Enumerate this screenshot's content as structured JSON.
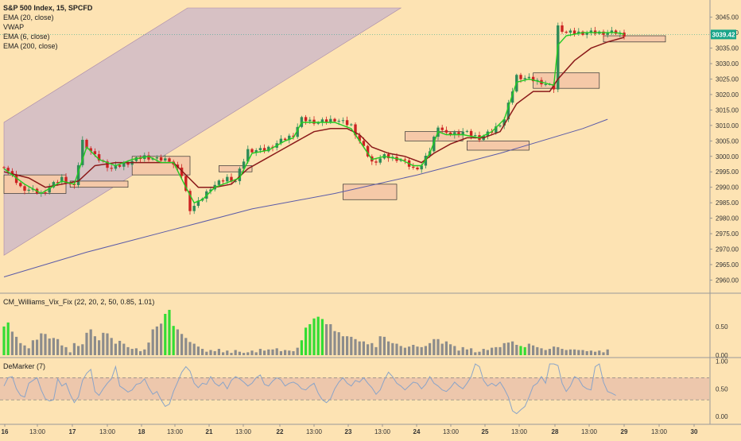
{
  "window": {
    "symbol_line": "S&P 500 Index, 15, SPCFD",
    "indicators": [
      "EMA (20, close)",
      "VWAP",
      "EMA (6, close)",
      "EMA (200, close)"
    ]
  },
  "price_badge": "3039.42",
  "colors": {
    "background": "#fde3b3",
    "channel_fill": "#c9b6c9",
    "zone_fill": "#f5c9a8",
    "ema_fast": "#22cc22",
    "ema_mid": "#8b1a1a",
    "ema_slow": "#5b5ba8",
    "bull": "#2e8b57",
    "bear": "#cc2222",
    "vix_gray": "#8c8c8c",
    "vix_green": "#33dd33",
    "demarker": "#8aa4c8",
    "badge": "#1aa58a"
  },
  "chart_data": [
    {
      "type": "candlestick",
      "pane": "price",
      "title": "S&P 500 Index, 15, SPCFD",
      "x_ticks": [
        "16",
        "13:00",
        "17",
        "13:00",
        "18",
        "13:00",
        "21",
        "13:00",
        "22",
        "13:00",
        "23",
        "13:00",
        "24",
        "13:00",
        "25",
        "13:00",
        "28",
        "13:00",
        "29",
        "13:00",
        "30"
      ],
      "y_ticks": [
        2960,
        2965,
        2970,
        2975,
        2980,
        2985,
        2990,
        2995,
        3000,
        3005,
        3010,
        3015,
        3020,
        3025,
        3030,
        3035,
        3040,
        3045
      ],
      "ylim": [
        2956,
        3048
      ],
      "last_price": 3039.42,
      "close_path": [
        [
          0,
          2997
        ],
        [
          4,
          2990
        ],
        [
          9,
          2988
        ],
        [
          14,
          2993
        ],
        [
          17,
          2990
        ],
        [
          19,
          3005
        ],
        [
          22,
          3000
        ],
        [
          26,
          2996
        ],
        [
          30,
          2998
        ],
        [
          34,
          3000
        ],
        [
          37,
          2999
        ],
        [
          40,
          2999
        ],
        [
          43,
          2994
        ],
        [
          45,
          2983
        ],
        [
          47,
          2985
        ],
        [
          50,
          2990
        ],
        [
          54,
          2993
        ],
        [
          56,
          2992
        ],
        [
          59,
          3002
        ],
        [
          63,
          3002
        ],
        [
          67,
          3005
        ],
        [
          70,
          3007
        ],
        [
          72,
          3012
        ],
        [
          76,
          3011
        ],
        [
          80,
          3012
        ],
        [
          84,
          3010
        ],
        [
          86,
          3005
        ],
        [
          89,
          2998
        ],
        [
          92,
          3000
        ],
        [
          96,
          2999
        ],
        [
          99,
          2996
        ],
        [
          101,
          2997
        ],
        [
          103,
          3002
        ],
        [
          105,
          3010
        ],
        [
          107,
          3007
        ],
        [
          111,
          3008
        ],
        [
          115,
          3006
        ],
        [
          118,
          3008
        ],
        [
          121,
          3012
        ],
        [
          124,
          3026
        ],
        [
          127,
          3025
        ],
        [
          130,
          3024
        ],
        [
          133,
          3022
        ],
        [
          134,
          3042
        ],
        [
          136,
          3040
        ],
        [
          140,
          3040
        ],
        [
          145,
          3040
        ],
        [
          148,
          3040
        ],
        [
          150,
          3039.4
        ]
      ],
      "candle_count": 151,
      "ema_6": [
        [
          0,
          2996
        ],
        [
          5,
          2991
        ],
        [
          9,
          2988
        ],
        [
          14,
          2992
        ],
        [
          17,
          2991
        ],
        [
          20,
          3003
        ],
        [
          23,
          2999
        ],
        [
          27,
          2997
        ],
        [
          31,
          2999
        ],
        [
          35,
          3000
        ],
        [
          38,
          2998
        ],
        [
          41,
          2998
        ],
        [
          44,
          2990
        ],
        [
          46,
          2985
        ],
        [
          48,
          2986
        ],
        [
          51,
          2990
        ],
        [
          55,
          2992
        ],
        [
          57,
          2993
        ],
        [
          60,
          3001
        ],
        [
          64,
          3002
        ],
        [
          68,
          3005
        ],
        [
          70,
          3006
        ],
        [
          72,
          3011
        ],
        [
          76,
          3011
        ],
        [
          80,
          3011
        ],
        [
          84,
          3009
        ],
        [
          86,
          3005
        ],
        [
          89,
          2999
        ],
        [
          92,
          3000
        ],
        [
          96,
          2999
        ],
        [
          99,
          2997
        ],
        [
          101,
          2997
        ],
        [
          103,
          3001
        ],
        [
          105,
          3008
        ],
        [
          107,
          3007
        ],
        [
          111,
          3007
        ],
        [
          115,
          3006
        ],
        [
          118,
          3008
        ],
        [
          121,
          3012
        ],
        [
          124,
          3024
        ],
        [
          127,
          3025
        ],
        [
          130,
          3024
        ],
        [
          133,
          3023
        ],
        [
          134,
          3036
        ],
        [
          136,
          3039
        ],
        [
          140,
          3040
        ],
        [
          145,
          3040
        ],
        [
          148,
          3040
        ],
        [
          150,
          3039.5
        ]
      ],
      "ema_20": [
        [
          0,
          2995
        ],
        [
          6,
          2993
        ],
        [
          10,
          2990
        ],
        [
          14,
          2991
        ],
        [
          18,
          2992
        ],
        [
          22,
          2997
        ],
        [
          27,
          2998
        ],
        [
          32,
          2998
        ],
        [
          37,
          2998
        ],
        [
          41,
          2998
        ],
        [
          44,
          2994
        ],
        [
          47,
          2990
        ],
        [
          51,
          2990
        ],
        [
          55,
          2991
        ],
        [
          59,
          2996
        ],
        [
          63,
          2999
        ],
        [
          67,
          3002
        ],
        [
          71,
          3005
        ],
        [
          75,
          3008
        ],
        [
          79,
          3009
        ],
        [
          83,
          3009
        ],
        [
          86,
          3007
        ],
        [
          89,
          3003
        ],
        [
          93,
          3001
        ],
        [
          97,
          3000
        ],
        [
          101,
          2998
        ],
        [
          104,
          3001
        ],
        [
          108,
          3004
        ],
        [
          112,
          3006
        ],
        [
          116,
          3006
        ],
        [
          120,
          3008
        ],
        [
          124,
          3017
        ],
        [
          128,
          3021
        ],
        [
          132,
          3021
        ],
        [
          134,
          3025
        ],
        [
          138,
          3031
        ],
        [
          142,
          3035
        ],
        [
          146,
          3037
        ],
        [
          150,
          3038.5
        ]
      ],
      "ema_200": [
        [
          0,
          2961
        ],
        [
          20,
          2969
        ],
        [
          40,
          2976
        ],
        [
          60,
          2983
        ],
        [
          80,
          2988
        ],
        [
          100,
          2994
        ],
        [
          120,
          3001
        ],
        [
          140,
          3009
        ],
        [
          146,
          3012
        ]
      ],
      "channel": {
        "lower_start": [
          0,
          2968
        ],
        "lower_end": [
          96,
          3048
        ],
        "upper_start": [
          0,
          3011
        ],
        "upper_end": [
          96,
          3048
        ]
      },
      "zones": [
        [
          0,
          15,
          2988,
          2994
        ],
        [
          16,
          30,
          2990,
          2992
        ],
        [
          31,
          45,
          2994,
          3000
        ],
        [
          52,
          60,
          2995,
          2997
        ],
        [
          82,
          95,
          2986,
          2991
        ],
        [
          97,
          111,
          3005,
          3008
        ],
        [
          112,
          127,
          3002,
          3005
        ],
        [
          128,
          144,
          3022,
          3027
        ],
        [
          145,
          160,
          3037,
          3039
        ]
      ]
    },
    {
      "type": "bar",
      "pane": "CM_Williams_Vix_Fix",
      "title": "CM_Williams_Vix_Fix (22, 20, 2, 50, 0.85, 1.01)",
      "y_ticks": [
        0.0,
        0.5
      ],
      "ylim": [
        0,
        0.9
      ],
      "values": [
        0.5,
        0.57,
        0.41,
        0.32,
        0.21,
        0.17,
        0.12,
        0.26,
        0.27,
        0.38,
        0.37,
        0.29,
        0.3,
        0.28,
        0.17,
        0.14,
        0.05,
        0.21,
        0.16,
        0.19,
        0.39,
        0.45,
        0.33,
        0.26,
        0.39,
        0.38,
        0.3,
        0.2,
        0.25,
        0.2,
        0.14,
        0.11,
        0.12,
        0.07,
        0.1,
        0.22,
        0.45,
        0.5,
        0.55,
        0.72,
        0.79,
        0.51,
        0.45,
        0.37,
        0.3,
        0.23,
        0.2,
        0.15,
        0.11,
        0.06,
        0.09,
        0.07,
        0.11,
        0.05,
        0.08,
        0.04,
        0.09,
        0.06,
        0.04,
        0.05,
        0.08,
        0.05,
        0.11,
        0.08,
        0.1,
        0.1,
        0.12,
        0.07,
        0.09,
        0.08,
        0.07,
        0.13,
        0.26,
        0.48,
        0.54,
        0.64,
        0.67,
        0.63,
        0.54,
        0.54,
        0.42,
        0.4,
        0.33,
        0.33,
        0.32,
        0.28,
        0.24,
        0.24,
        0.19,
        0.21,
        0.14,
        0.33,
        0.32,
        0.24,
        0.21,
        0.2,
        0.16,
        0.13,
        0.15,
        0.18,
        0.15,
        0.14,
        0.16,
        0.21,
        0.28,
        0.28,
        0.2,
        0.24,
        0.19,
        0.16,
        0.08,
        0.14,
        0.1,
        0.12,
        0.05,
        0.06,
        0.11,
        0.09,
        0.13,
        0.14,
        0.14,
        0.21,
        0.22,
        0.24,
        0.18,
        0.16,
        0.14,
        0.2,
        0.17,
        0.14,
        0.12,
        0.09,
        0.11,
        0.15,
        0.14,
        0.11,
        0.09,
        0.1,
        0.1,
        0.09,
        0.09,
        0.07,
        0.08,
        0.06,
        0.08,
        0.05,
        0.1
      ],
      "highlighted_bars": [
        0,
        1,
        39,
        40,
        41,
        72,
        73,
        74,
        75,
        76,
        77,
        125,
        126
      ]
    },
    {
      "type": "line",
      "pane": "DeMarker",
      "title": "DeMarker (7)",
      "y_ticks": [
        0.0,
        0.5,
        1.0
      ],
      "ylim": [
        -0.1,
        1.05
      ],
      "bands": [
        0.3,
        0.7
      ],
      "values": [
        0.55,
        0.7,
        0.72,
        0.5,
        0.38,
        0.35,
        0.6,
        0.65,
        0.7,
        0.48,
        0.32,
        0.28,
        0.3,
        0.68,
        0.55,
        0.6,
        0.4,
        0.25,
        0.35,
        0.65,
        0.78,
        0.85,
        0.45,
        0.38,
        0.5,
        0.6,
        0.68,
        0.9,
        0.55,
        0.5,
        0.44,
        0.48,
        0.58,
        0.6,
        0.68,
        0.52,
        0.4,
        0.45,
        0.3,
        0.18,
        0.22,
        0.45,
        0.62,
        0.8,
        0.9,
        0.82,
        0.6,
        0.52,
        0.6,
        0.58,
        0.72,
        0.6,
        0.55,
        0.62,
        0.5,
        0.65,
        0.72,
        0.68,
        0.62,
        0.55,
        0.6,
        0.7,
        0.75,
        0.58,
        0.55,
        0.64,
        0.7,
        0.66,
        0.55,
        0.6,
        0.62,
        0.58,
        0.5,
        0.48,
        0.55,
        0.6,
        0.42,
        0.3,
        0.25,
        0.32,
        0.5,
        0.62,
        0.7,
        0.6,
        0.55,
        0.65,
        0.62,
        0.7,
        0.6,
        0.52,
        0.4,
        0.48,
        0.66,
        0.8,
        0.72,
        0.6,
        0.55,
        0.48,
        0.55,
        0.62,
        0.6,
        0.5,
        0.58,
        0.72,
        0.6,
        0.55,
        0.48,
        0.45,
        0.52,
        0.62,
        0.55,
        0.5,
        0.6,
        0.72,
        0.95,
        0.9,
        0.65,
        0.55,
        0.6,
        0.55,
        0.62,
        0.5,
        0.35,
        0.1,
        0.05,
        0.12,
        0.18,
        0.35,
        0.55,
        0.6,
        0.72,
        0.6,
        0.95,
        0.95,
        0.92,
        0.6,
        0.45,
        0.55,
        0.72,
        0.68,
        0.55,
        0.5,
        0.48,
        0.9,
        0.95,
        0.62,
        0.45,
        0.42,
        0.38
      ]
    }
  ]
}
